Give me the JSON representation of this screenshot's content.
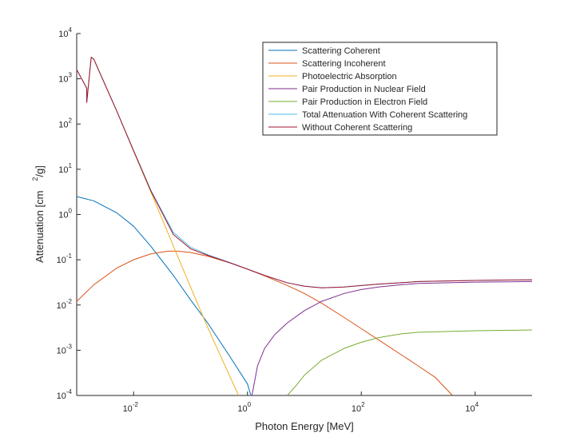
{
  "chart_data": {
    "type": "line",
    "xlabel": "Photon Energy [MeV]",
    "ylabel_text": "Attenuation [cm",
    "ylabel_sup": "2",
    "ylabel_tail": "/g]",
    "x_scale": "log",
    "y_scale": "log",
    "xlim": [
      0.001,
      100000
    ],
    "ylim": [
      0.0001,
      10000
    ],
    "grid": false,
    "legend_position": "top-right",
    "x_ticks": [
      {
        "value": 0.01,
        "base": "10",
        "exp": "-2"
      },
      {
        "value": 1,
        "base": "10",
        "exp": "0"
      },
      {
        "value": 100,
        "base": "10",
        "exp": "2"
      },
      {
        "value": 10000,
        "base": "10",
        "exp": "4"
      }
    ],
    "y_ticks": [
      {
        "value": 0.0001,
        "base": "10",
        "exp": "-4"
      },
      {
        "value": 0.001,
        "base": "10",
        "exp": "-3"
      },
      {
        "value": 0.01,
        "base": "10",
        "exp": "-2"
      },
      {
        "value": 0.1,
        "base": "10",
        "exp": "-1"
      },
      {
        "value": 1,
        "base": "10",
        "exp": "0"
      },
      {
        "value": 10,
        "base": "10",
        "exp": "1"
      },
      {
        "value": 100,
        "base": "10",
        "exp": "2"
      },
      {
        "value": 1000,
        "base": "10",
        "exp": "3"
      },
      {
        "value": 10000,
        "base": "10",
        "exp": "4"
      }
    ],
    "series": [
      {
        "name": "Scattering Coherent",
        "color": "#0072BD",
        "points": [
          [
            0.001,
            2.5
          ],
          [
            0.002,
            2.0
          ],
          [
            0.005,
            1.1
          ],
          [
            0.01,
            0.55
          ],
          [
            0.02,
            0.2
          ],
          [
            0.05,
            0.045
          ],
          [
            0.1,
            0.013
          ],
          [
            0.2,
            0.004
          ],
          [
            0.5,
            0.0007
          ],
          [
            1,
            0.00018
          ],
          [
            1.15,
            0.0001
          ]
        ]
      },
      {
        "name": "Scattering Incoherent",
        "color": "#D95319",
        "points": [
          [
            0.001,
            0.012
          ],
          [
            0.002,
            0.028
          ],
          [
            0.005,
            0.065
          ],
          [
            0.01,
            0.1
          ],
          [
            0.02,
            0.135
          ],
          [
            0.04,
            0.155
          ],
          [
            0.06,
            0.155
          ],
          [
            0.1,
            0.145
          ],
          [
            0.2,
            0.12
          ],
          [
            0.5,
            0.085
          ],
          [
            1,
            0.062
          ],
          [
            2,
            0.044
          ],
          [
            5,
            0.027
          ],
          [
            10,
            0.018
          ],
          [
            20,
            0.011
          ],
          [
            50,
            0.0053
          ],
          [
            100,
            0.003
          ],
          [
            200,
            0.0017
          ],
          [
            500,
            0.0008
          ],
          [
            1000,
            0.00045
          ],
          [
            2000,
            0.00025
          ],
          [
            4000,
            0.0001
          ]
        ]
      },
      {
        "name": "Photoelectric Absorption",
        "color": "#EDB120",
        "points": [
          [
            0.001,
            1600
          ],
          [
            0.0015,
            620
          ],
          [
            0.0015,
            300
          ],
          [
            0.0018,
            3000
          ],
          [
            0.002,
            2700
          ],
          [
            0.005,
            200
          ],
          [
            0.01,
            25
          ],
          [
            0.02,
            3.2
          ],
          [
            0.05,
            0.2
          ],
          [
            0.1,
            0.025
          ],
          [
            0.2,
            0.0032
          ],
          [
            0.5,
            0.00025
          ],
          [
            0.7,
            0.0001
          ]
        ]
      },
      {
        "name": "Pair Production in Nuclear Field",
        "color": "#7E2F8E",
        "points": [
          [
            1.2,
            0.0001
          ],
          [
            1.5,
            0.00045
          ],
          [
            2,
            0.0011
          ],
          [
            3,
            0.0022
          ],
          [
            5,
            0.004
          ],
          [
            10,
            0.0075
          ],
          [
            20,
            0.012
          ],
          [
            50,
            0.018
          ],
          [
            100,
            0.022
          ],
          [
            200,
            0.025
          ],
          [
            500,
            0.028
          ],
          [
            1000,
            0.03
          ],
          [
            10000,
            0.032
          ],
          [
            100000,
            0.033
          ]
        ]
      },
      {
        "name": "Pair Production in Electron Field",
        "color": "#77AC30",
        "points": [
          [
            5,
            0.0001
          ],
          [
            7,
            0.00016
          ],
          [
            10,
            0.00028
          ],
          [
            20,
            0.0006
          ],
          [
            50,
            0.0011
          ],
          [
            100,
            0.0015
          ],
          [
            200,
            0.0019
          ],
          [
            500,
            0.0023
          ],
          [
            1000,
            0.0025
          ],
          [
            10000,
            0.0027
          ],
          [
            100000,
            0.0028
          ]
        ]
      },
      {
        "name": "Total Attenuation With Coherent Scattering",
        "color": "#4DBEEE",
        "points": [
          [
            0.001,
            1600
          ],
          [
            0.0015,
            620
          ],
          [
            0.0015,
            300
          ],
          [
            0.0018,
            3000
          ],
          [
            0.002,
            2700
          ],
          [
            0.005,
            200
          ],
          [
            0.01,
            26
          ],
          [
            0.02,
            3.5
          ],
          [
            0.05,
            0.4
          ],
          [
            0.1,
            0.19
          ],
          [
            0.2,
            0.13
          ],
          [
            0.5,
            0.086
          ],
          [
            1,
            0.062
          ],
          [
            2,
            0.045
          ],
          [
            5,
            0.031
          ],
          [
            10,
            0.026
          ],
          [
            20,
            0.024
          ],
          [
            50,
            0.025
          ],
          [
            100,
            0.027
          ],
          [
            200,
            0.029
          ],
          [
            500,
            0.031
          ],
          [
            1000,
            0.033
          ],
          [
            10000,
            0.035
          ],
          [
            100000,
            0.036
          ]
        ]
      },
      {
        "name": "Without Coherent Scattering",
        "color": "#A2142F",
        "points": [
          [
            0.001,
            1600
          ],
          [
            0.0015,
            620
          ],
          [
            0.0015,
            300
          ],
          [
            0.0018,
            3000
          ],
          [
            0.002,
            2700
          ],
          [
            0.005,
            200
          ],
          [
            0.01,
            25.5
          ],
          [
            0.02,
            3.35
          ],
          [
            0.05,
            0.36
          ],
          [
            0.1,
            0.175
          ],
          [
            0.2,
            0.125
          ],
          [
            0.5,
            0.085
          ],
          [
            1,
            0.062
          ],
          [
            2,
            0.045
          ],
          [
            5,
            0.031
          ],
          [
            10,
            0.026
          ],
          [
            20,
            0.024
          ],
          [
            50,
            0.025
          ],
          [
            100,
            0.027
          ],
          [
            200,
            0.029
          ],
          [
            500,
            0.031
          ],
          [
            1000,
            0.033
          ],
          [
            10000,
            0.035
          ],
          [
            100000,
            0.036
          ]
        ]
      }
    ]
  }
}
